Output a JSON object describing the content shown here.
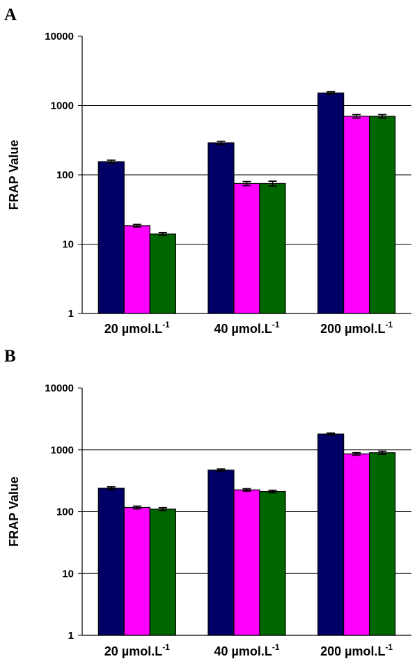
{
  "chart_data": [
    {
      "panel": "A",
      "type": "bar",
      "title": "",
      "xlabel": "",
      "ylabel": "FRAP Value",
      "yscale": "log",
      "ylim": [
        1,
        10000
      ],
      "yticks": [
        "1",
        "10",
        "100",
        "1000",
        "10000"
      ],
      "categories": [
        {
          "base": "20 µmol.L",
          "sup": "-1"
        },
        {
          "base": "40 µmol.L",
          "sup": "-1"
        },
        {
          "base": "200 µmol.L",
          "sup": "-1"
        }
      ],
      "series": [
        {
          "color": "#000066",
          "values": [
            155,
            290,
            1520
          ],
          "errors": [
            8,
            15,
            60
          ]
        },
        {
          "color": "#ff00ff",
          "values": [
            18.5,
            75,
            700
          ],
          "errors": [
            0.8,
            5,
            40
          ]
        },
        {
          "color": "#006600",
          "values": [
            14,
            75,
            700
          ],
          "errors": [
            0.7,
            6,
            40
          ]
        }
      ],
      "grid": true,
      "legend": "none"
    },
    {
      "panel": "B",
      "type": "bar",
      "title": "",
      "xlabel": "",
      "ylabel": "FRAP Value",
      "yscale": "log",
      "ylim": [
        1,
        10000
      ],
      "yticks": [
        "1",
        "10",
        "100",
        "1000",
        "10000"
      ],
      "categories": [
        {
          "base": "20 µmol.L",
          "sup": "-1"
        },
        {
          "base": "40 µmol.L",
          "sup": "-1"
        },
        {
          "base": "200 µmol.L",
          "sup": "-1"
        }
      ],
      "series": [
        {
          "color": "#000066",
          "values": [
            240,
            470,
            1800
          ],
          "errors": [
            12,
            20,
            70
          ]
        },
        {
          "color": "#ff00ff",
          "values": [
            117,
            225,
            860
          ],
          "errors": [
            6,
            10,
            40
          ]
        },
        {
          "color": "#006600",
          "values": [
            110,
            212,
            900
          ],
          "errors": [
            6,
            10,
            50
          ]
        }
      ],
      "grid": true,
      "legend": "none"
    }
  ]
}
